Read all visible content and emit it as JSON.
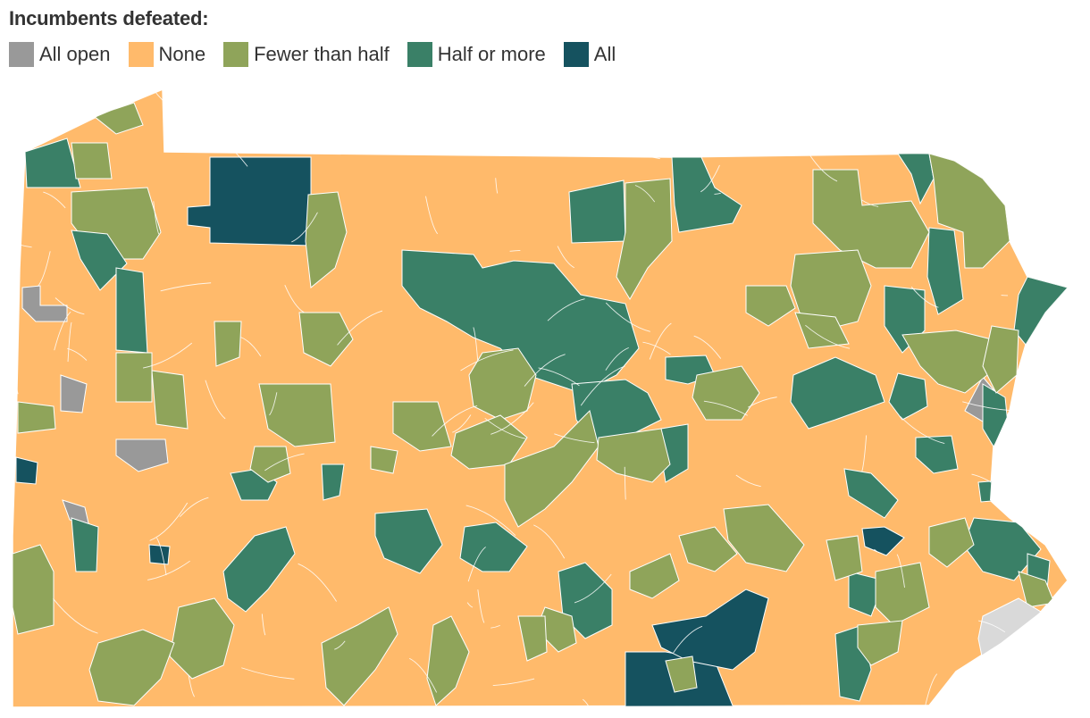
{
  "legend": {
    "title": "Incumbents defeated:",
    "items": [
      {
        "key": "all_open",
        "label": "All open",
        "color": "#999999"
      },
      {
        "key": "none",
        "label": "None",
        "color": "#ffba6b"
      },
      {
        "key": "fewer",
        "label": "Fewer than half",
        "color": "#8fa45a"
      },
      {
        "key": "half",
        "label": "Half or more",
        "color": "#3a8067"
      },
      {
        "key": "all",
        "label": "All",
        "color": "#15525f"
      }
    ]
  },
  "map": {
    "region": "Pennsylvania school districts",
    "no_data_color": "#d9d9d9",
    "border_color": "#ffffff"
  }
}
